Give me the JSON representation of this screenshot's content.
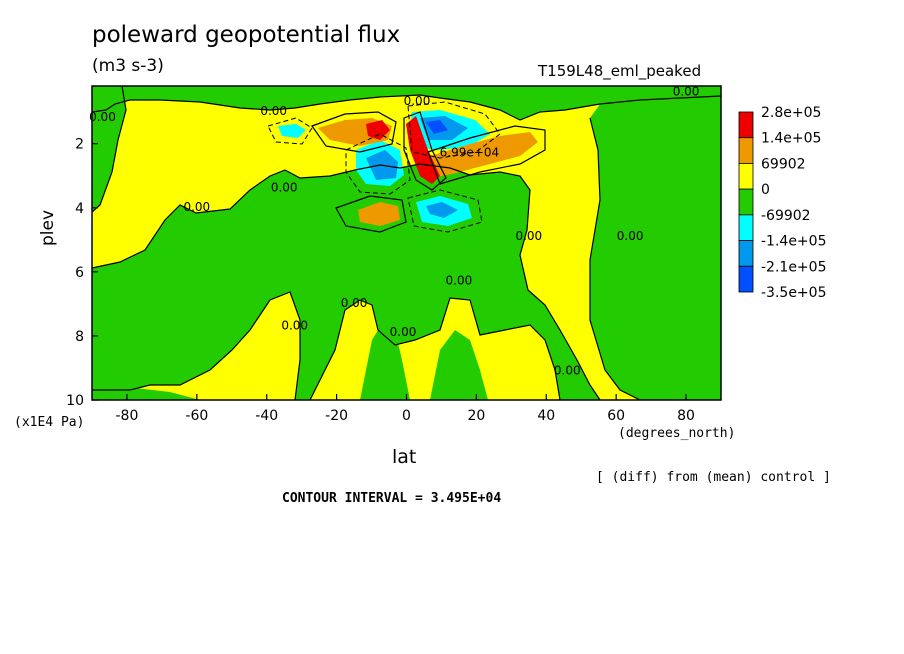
{
  "header": {
    "title": "poleward geopotential flux",
    "units": "(m3 s-3)",
    "run_label": "T159L48_eml_peaked"
  },
  "footer": {
    "diff_note": "[ (diff) from (mean) control ]",
    "contour_interval": "CONTOUR INTERVAL = 3.495E+04"
  },
  "chart_data": {
    "type": "heatmap",
    "title": "poleward geopotential flux",
    "subtitle": "(m3 s-3)",
    "xlabel": "lat",
    "xunits": "(degrees_north)",
    "ylabel": "plev",
    "yunits": "(x1E4 Pa)",
    "xlim": [
      -90,
      90
    ],
    "ylim": [
      10,
      0.2
    ],
    "x_ticks": [
      -80,
      -60,
      -40,
      -20,
      0,
      20,
      40,
      60,
      80
    ],
    "y_ticks": [
      2,
      4,
      6,
      8,
      10
    ],
    "legend": {
      "placement": "right",
      "levels": [
        "2.8e+05",
        "1.4e+05",
        "69902",
        "0",
        "-69902",
        "-1.4e+05",
        "-2.1e+05",
        "-3.5e+05"
      ],
      "colors": [
        "#ee0000",
        "#ee9900",
        "#ffff00",
        "#22cc00",
        "#00ffff",
        "#0099ee",
        "#0050ff"
      ]
    },
    "contour_labels": [
      {
        "text": "0.00",
        "lat": -38,
        "plev": 1.1
      },
      {
        "text": "0.00",
        "lat": 3,
        "plev": 0.8
      },
      {
        "text": "0.00",
        "lat": 80,
        "plev": 0.5
      },
      {
        "text": "0.00",
        "lat": -87,
        "plev": 1.3
      },
      {
        "text": "0.00",
        "lat": -35,
        "plev": 3.5
      },
      {
        "text": "0.00",
        "lat": -60,
        "plev": 4.1
      },
      {
        "text": "6.99e+04",
        "lat": 18,
        "plev": 2.4
      },
      {
        "text": "0.00",
        "lat": 35,
        "plev": 5.0
      },
      {
        "text": "0.00",
        "lat": 64,
        "plev": 5.0
      },
      {
        "text": "0.00",
        "lat": 15,
        "plev": 6.4
      },
      {
        "text": "0.00",
        "lat": -15,
        "plev": 7.1
      },
      {
        "text": "0.00",
        "lat": -32,
        "plev": 7.8
      },
      {
        "text": "0.00",
        "lat": -1,
        "plev": 8.0
      },
      {
        "text": "0.00",
        "lat": 46,
        "plev": 9.2
      }
    ],
    "grid": false
  }
}
